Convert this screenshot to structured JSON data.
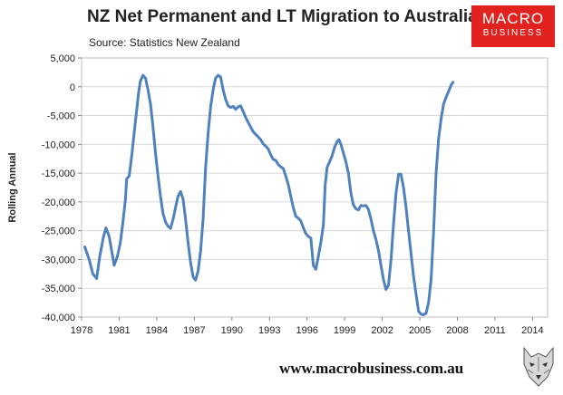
{
  "header": {
    "title": "NZ Net Permanent and LT Migration to Australia",
    "source": "Source: Statistics New Zealand"
  },
  "logo": {
    "line1": "MACRO",
    "line2": "BUSINESS"
  },
  "footer": {
    "url": "www.macrobusiness.com.au",
    "mascot_icon": "wolf-icon"
  },
  "colors": {
    "line": "#4f81bd",
    "logo_bg": "#e2221f",
    "grid": "#d9d9d9"
  },
  "chart_data": {
    "type": "line",
    "title": "NZ Net Permanent and LT Migration to Australia",
    "xlabel": "",
    "ylabel": "Rolling Annual",
    "xlim": [
      1978,
      2015.2
    ],
    "ylim": [
      -40000,
      5000
    ],
    "grid": "horizontal",
    "x_ticks": [
      {
        "value": 1978,
        "label": "1978"
      },
      {
        "value": 1981,
        "label": "1981"
      },
      {
        "value": 1984,
        "label": "1984"
      },
      {
        "value": 1987,
        "label": "1987"
      },
      {
        "value": 1990,
        "label": "1990"
      },
      {
        "value": 1993,
        "label": "1993"
      },
      {
        "value": 1996,
        "label": "1996"
      },
      {
        "value": 1999,
        "label": "1999"
      },
      {
        "value": 2002,
        "label": "2002"
      },
      {
        "value": 2005,
        "label": "2005"
      },
      {
        "value": 2008,
        "label": "2008"
      },
      {
        "value": 2011,
        "label": "2011"
      },
      {
        "value": 2014,
        "label": "2014"
      }
    ],
    "y_ticks": [
      {
        "value": 5000,
        "label": "5,000"
      },
      {
        "value": 0,
        "label": "0"
      },
      {
        "value": -5000,
        "label": "-5,000"
      },
      {
        "value": -10000,
        "label": "-10,000"
      },
      {
        "value": -15000,
        "label": "-15,000"
      },
      {
        "value": -20000,
        "label": "-20,000"
      },
      {
        "value": -25000,
        "label": "-25,000"
      },
      {
        "value": -30000,
        "label": "-30,000"
      },
      {
        "value": -35000,
        "label": "-35,000"
      },
      {
        "value": -40000,
        "label": "-40,000"
      }
    ],
    "series": [
      {
        "points": [
          [
            1978.25,
            -27800
          ],
          [
            1978.6,
            -30000
          ],
          [
            1978.9,
            -32500
          ],
          [
            1979.2,
            -33300
          ],
          [
            1979.45,
            -29500
          ],
          [
            1979.75,
            -26000
          ],
          [
            1979.95,
            -24500
          ],
          [
            1980.2,
            -26000
          ],
          [
            1980.4,
            -28500
          ],
          [
            1980.6,
            -31000
          ],
          [
            1980.85,
            -29500
          ],
          [
            1981.1,
            -27000
          ],
          [
            1981.3,
            -23500
          ],
          [
            1981.5,
            -19500
          ],
          [
            1981.6,
            -16000
          ],
          [
            1981.8,
            -15500
          ],
          [
            1982.0,
            -12000
          ],
          [
            1982.2,
            -8000
          ],
          [
            1982.4,
            -4000
          ],
          [
            1982.55,
            -1000
          ],
          [
            1982.7,
            1000
          ],
          [
            1982.9,
            2000
          ],
          [
            1983.1,
            1500
          ],
          [
            1983.3,
            -500
          ],
          [
            1983.5,
            -3000
          ],
          [
            1983.7,
            -7000
          ],
          [
            1983.9,
            -11500
          ],
          [
            1984.1,
            -15500
          ],
          [
            1984.3,
            -19000
          ],
          [
            1984.5,
            -22000
          ],
          [
            1984.7,
            -23500
          ],
          [
            1984.9,
            -24200
          ],
          [
            1985.1,
            -24600
          ],
          [
            1985.3,
            -23000
          ],
          [
            1985.5,
            -21000
          ],
          [
            1985.7,
            -19000
          ],
          [
            1985.9,
            -18200
          ],
          [
            1986.1,
            -19500
          ],
          [
            1986.3,
            -23000
          ],
          [
            1986.5,
            -27000
          ],
          [
            1986.7,
            -30500
          ],
          [
            1986.9,
            -33000
          ],
          [
            1987.1,
            -33600
          ],
          [
            1987.3,
            -32000
          ],
          [
            1987.5,
            -28500
          ],
          [
            1987.7,
            -23000
          ],
          [
            1987.9,
            -14000
          ],
          [
            1988.1,
            -8000
          ],
          [
            1988.3,
            -3500
          ],
          [
            1988.5,
            -500
          ],
          [
            1988.7,
            1500
          ],
          [
            1988.9,
            2000
          ],
          [
            1989.1,
            1700
          ],
          [
            1989.3,
            -500
          ],
          [
            1989.5,
            -2200
          ],
          [
            1989.7,
            -3300
          ],
          [
            1989.9,
            -3600
          ],
          [
            1990.1,
            -3400
          ],
          [
            1990.3,
            -3900
          ],
          [
            1990.5,
            -3500
          ],
          [
            1990.7,
            -3300
          ],
          [
            1990.9,
            -4300
          ],
          [
            1991.1,
            -5300
          ],
          [
            1991.3,
            -6200
          ],
          [
            1991.5,
            -7000
          ],
          [
            1991.7,
            -7800
          ],
          [
            1991.9,
            -8300
          ],
          [
            1992.1,
            -8700
          ],
          [
            1992.3,
            -9200
          ],
          [
            1992.5,
            -9900
          ],
          [
            1992.7,
            -10300
          ],
          [
            1992.9,
            -10800
          ],
          [
            1993.1,
            -11800
          ],
          [
            1993.3,
            -12600
          ],
          [
            1993.5,
            -12800
          ],
          [
            1993.7,
            -13500
          ],
          [
            1993.9,
            -13900
          ],
          [
            1994.1,
            -14200
          ],
          [
            1994.3,
            -15500
          ],
          [
            1994.5,
            -17000
          ],
          [
            1994.7,
            -19000
          ],
          [
            1994.9,
            -21000
          ],
          [
            1995.1,
            -22500
          ],
          [
            1995.3,
            -22800
          ],
          [
            1995.5,
            -23300
          ],
          [
            1995.7,
            -24500
          ],
          [
            1995.9,
            -25500
          ],
          [
            1996.1,
            -26000
          ],
          [
            1996.3,
            -26300
          ],
          [
            1996.5,
            -31000
          ],
          [
            1996.7,
            -31700
          ],
          [
            1996.9,
            -29500
          ],
          [
            1997.1,
            -27000
          ],
          [
            1997.3,
            -24000
          ],
          [
            1997.45,
            -17000
          ],
          [
            1997.6,
            -14000
          ],
          [
            1997.8,
            -13000
          ],
          [
            1998.0,
            -12000
          ],
          [
            1998.2,
            -10500
          ],
          [
            1998.4,
            -9500
          ],
          [
            1998.55,
            -9200
          ],
          [
            1998.7,
            -10000
          ],
          [
            1998.9,
            -11500
          ],
          [
            1999.1,
            -13000
          ],
          [
            1999.3,
            -15000
          ],
          [
            1999.5,
            -18500
          ],
          [
            1999.7,
            -20500
          ],
          [
            1999.9,
            -21200
          ],
          [
            2000.1,
            -21400
          ],
          [
            2000.3,
            -20600
          ],
          [
            2000.5,
            -20700
          ],
          [
            2000.7,
            -20600
          ],
          [
            2000.9,
            -21300
          ],
          [
            2001.1,
            -23000
          ],
          [
            2001.3,
            -25000
          ],
          [
            2001.5,
            -26500
          ],
          [
            2001.7,
            -28500
          ],
          [
            2001.9,
            -31000
          ],
          [
            2002.1,
            -33500
          ],
          [
            2002.3,
            -35200
          ],
          [
            2002.5,
            -34500
          ],
          [
            2002.7,
            -30000
          ],
          [
            2002.9,
            -24000
          ],
          [
            2003.1,
            -18500
          ],
          [
            2003.3,
            -15200
          ],
          [
            2003.5,
            -15200
          ],
          [
            2003.7,
            -17500
          ],
          [
            2003.9,
            -21000
          ],
          [
            2004.1,
            -25000
          ],
          [
            2004.3,
            -29000
          ],
          [
            2004.5,
            -33000
          ],
          [
            2004.7,
            -36000
          ],
          [
            2004.9,
            -39000
          ],
          [
            2005.1,
            -39500
          ],
          [
            2005.3,
            -39600
          ],
          [
            2005.5,
            -39300
          ],
          [
            2005.7,
            -37500
          ],
          [
            2005.9,
            -33500
          ],
          [
            2006.1,
            -25000
          ],
          [
            2006.3,
            -15000
          ],
          [
            2006.5,
            -9000
          ],
          [
            2006.7,
            -5500
          ],
          [
            2006.9,
            -3000
          ],
          [
            2007.1,
            -1800
          ],
          [
            2007.3,
            -800
          ],
          [
            2007.5,
            300
          ],
          [
            2007.65,
            800
          ]
        ]
      }
    ]
  }
}
